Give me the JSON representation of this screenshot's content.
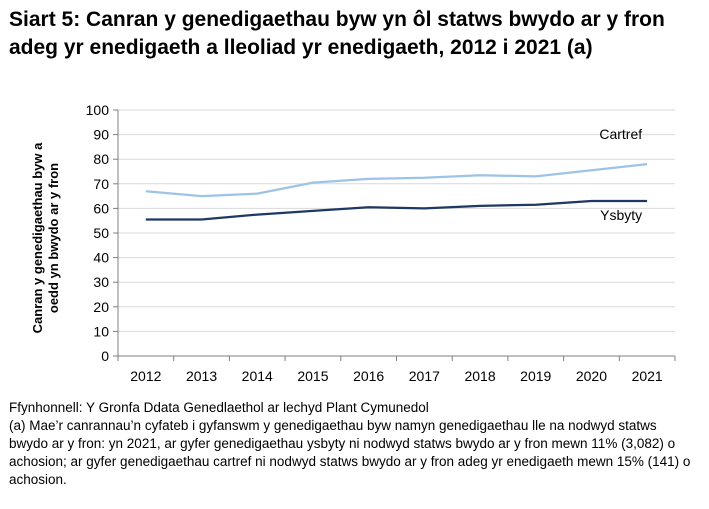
{
  "title": "Siart 5: Canran y genedigaethau byw yn ôl statws bwydo ar y fron adeg yr enedigaeth a lleoliad yr enedigaeth, 2012 i 2021 (a)",
  "chart_data": {
    "type": "line",
    "title": "Siart 5: Canran y genedigaethau byw yn ôl statws bwydo ar y fron adeg yr enedigaeth a lleoliad yr enedigaeth, 2012 i 2021 (a)",
    "xlabel": "",
    "ylabel_lines": [
      "Canran y genedigaethau byw a",
      "oedd yn bwydo ar y fron"
    ],
    "categories": [
      "2012",
      "2013",
      "2014",
      "2015",
      "2016",
      "2017",
      "2018",
      "2019",
      "2020",
      "2021"
    ],
    "yticks": [
      "0",
      "10",
      "20",
      "30",
      "40",
      "50",
      "60",
      "70",
      "80",
      "90",
      "100"
    ],
    "ylim": [
      0,
      100
    ],
    "grid": true,
    "series": [
      {
        "name": "Cartref",
        "color": "#9dc3e6",
        "values": [
          67,
          65,
          66,
          70.5,
          72,
          72.5,
          73.5,
          73,
          75.5,
          78
        ]
      },
      {
        "name": "Ysbyty",
        "color": "#1f3864",
        "values": [
          55.5,
          55.5,
          57.5,
          59,
          60.5,
          60,
          61,
          61.5,
          63,
          63
        ]
      }
    ]
  },
  "notes": {
    "source": "Ffynhonnell: Y Gronfa Ddata Genedlaethol ar lechyd Plant Cymunedol",
    "footnote": "(a) Mae’r canrannau’n cyfateb i gyfanswm y genedigaethau byw namyn genedigaethau lle na nodwyd statws bwydo ar y fron: yn 2021, ar gyfer genedigaethau ysbyty ni nodwyd statws bwydo ar y fron mewn 11% (3,082) o achosion; ar gyfer genedigaethau cartref ni nodwyd statws bwydo ar y fron adeg yr enedigaeth mewn 15% (141) o achosion."
  }
}
